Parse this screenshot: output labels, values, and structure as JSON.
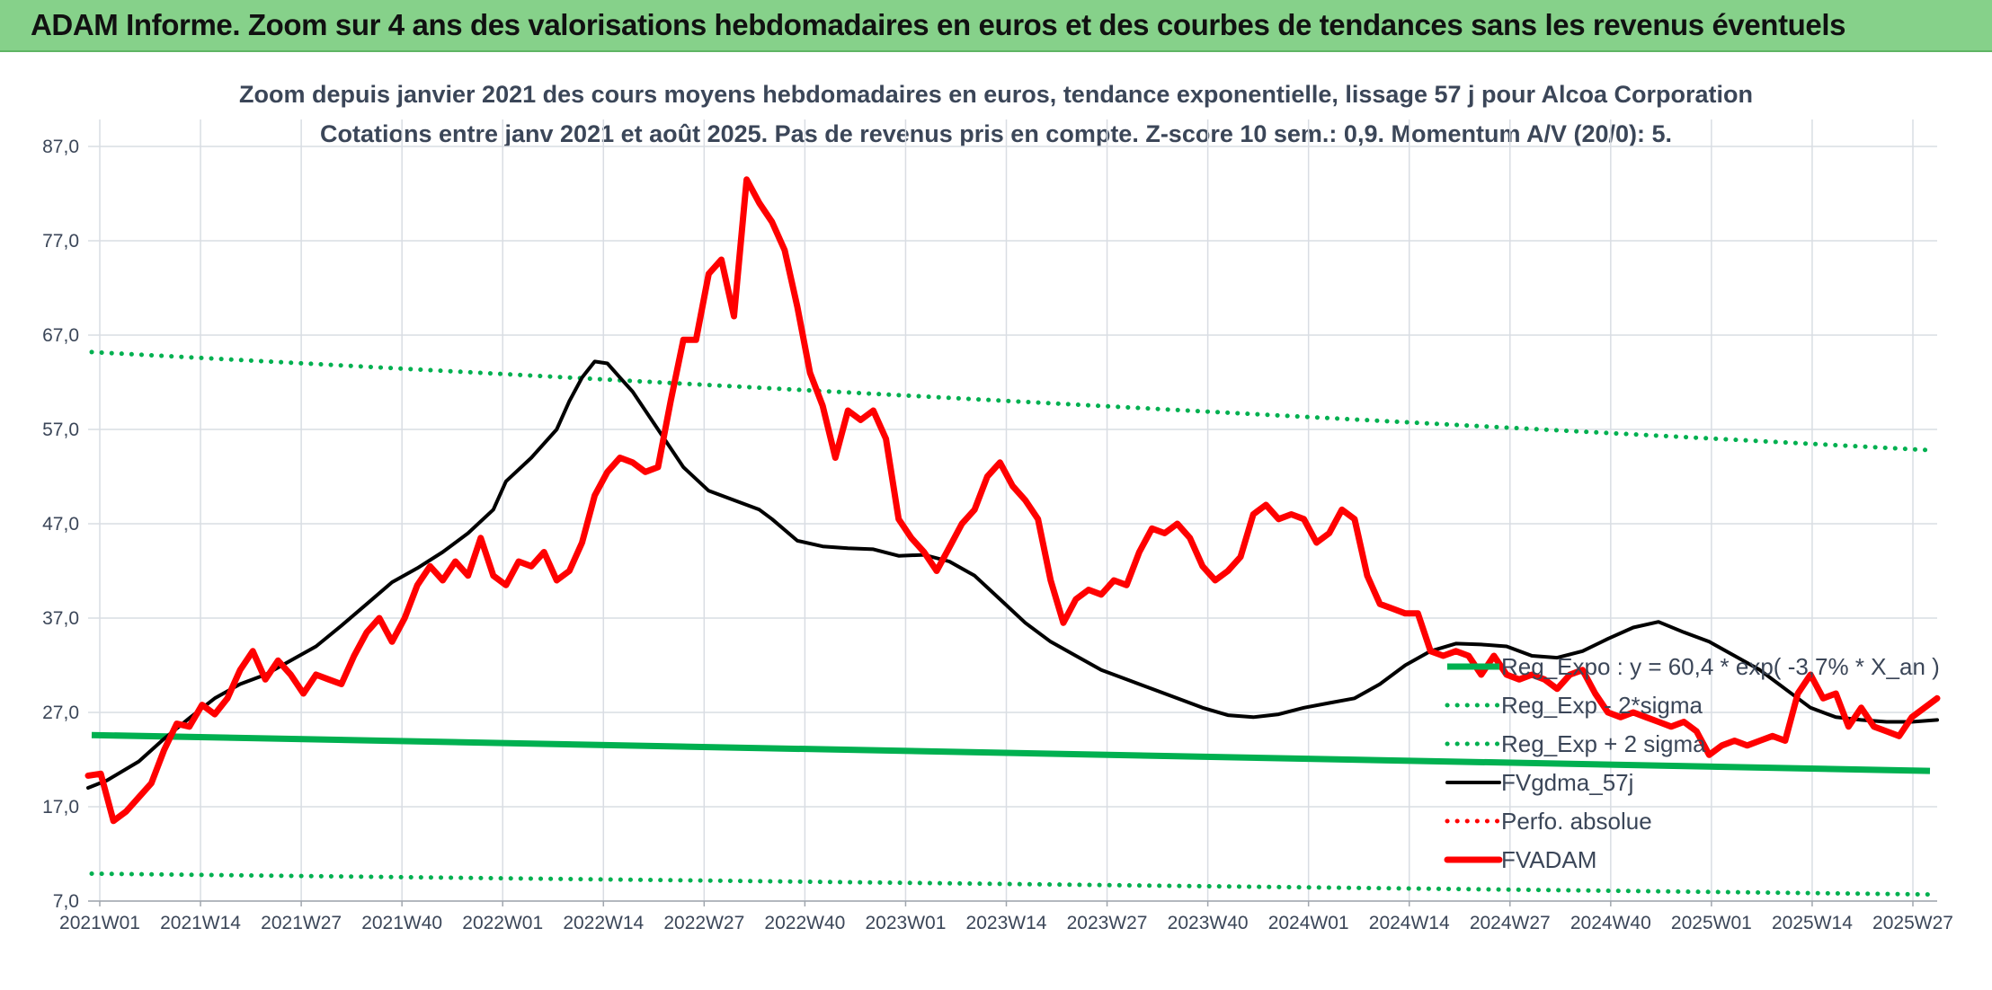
{
  "banner": {
    "title": "ADAM Informe. Zoom sur 4 ans des valorisations hebdomadaires en euros et des courbes de tendances sans les revenus éventuels"
  },
  "chart_data": {
    "type": "line",
    "title": "Zoom depuis janvier 2021 des cours moyens hebdomadaires en euros, tendance exponentielle, lissage 57 j pour Alcoa Corporation",
    "subtitle": "Cotations entre janv 2021 et août 2025. Pas de revenus pris en compte. Z-score 10 sem.: 0,9. Momentum A/V (20/0): 5.",
    "xlabel": "",
    "ylabel": "",
    "ylim": [
      7,
      87
    ],
    "yticks": [
      "7,0",
      "17,0",
      "27,0",
      "37,0",
      "47,0",
      "57,0",
      "67,0",
      "77,0",
      "87,0"
    ],
    "xticks": [
      "2021W01",
      "2021W14",
      "2021W27",
      "2021W40",
      "2022W01",
      "2022W14",
      "2022W27",
      "2022W40",
      "2023W01",
      "2023W14",
      "2023W27",
      "2023W40",
      "2024W01",
      "2024W14",
      "2024W27",
      "2024W40",
      "2025W01",
      "2025W14",
      "2025W27"
    ],
    "x_week_range": [
      0,
      243
    ],
    "grid": true,
    "legend_position": "right",
    "series": [
      {
        "name": "Reg_Expo : y = 60,4 * exp( -3,7% *  X_an )",
        "color": "#00b050",
        "style": "solid",
        "points": [
          [
            0,
            24.6
          ],
          [
            243,
            20.8
          ]
        ]
      },
      {
        "name": "Reg_Exp - 2*sigma",
        "color": "#00b050",
        "style": "dotted",
        "points": [
          [
            0,
            9.9
          ],
          [
            243,
            7.7
          ]
        ]
      },
      {
        "name": "Reg_Exp + 2 sigma",
        "color": "#00b050",
        "style": "dotted",
        "points": [
          [
            0,
            65.2
          ],
          [
            243,
            54.8
          ]
        ]
      },
      {
        "name": "FVgdma_57j",
        "color": "#000000",
        "style": "solid",
        "points": [
          [
            0,
            19.0
          ],
          [
            3,
            19.8
          ],
          [
            8,
            21.8
          ],
          [
            12,
            24.2
          ],
          [
            16,
            26.4
          ],
          [
            20,
            28.5
          ],
          [
            24,
            30.0
          ],
          [
            28,
            31.0
          ],
          [
            32,
            32.5
          ],
          [
            36,
            34.0
          ],
          [
            40,
            36.2
          ],
          [
            44,
            38.5
          ],
          [
            48,
            40.8
          ],
          [
            52,
            42.3
          ],
          [
            56,
            44.0
          ],
          [
            60,
            46.0
          ],
          [
            64,
            48.5
          ],
          [
            66,
            51.5
          ],
          [
            70,
            54.0
          ],
          [
            74,
            57.0
          ],
          [
            76,
            60.0
          ],
          [
            78,
            62.5
          ],
          [
            80,
            64.2
          ],
          [
            82,
            64.0
          ],
          [
            84,
            62.5
          ],
          [
            86,
            61.0
          ],
          [
            88,
            59.0
          ],
          [
            90,
            57.0
          ],
          [
            94,
            53.0
          ],
          [
            98,
            50.5
          ],
          [
            102,
            49.5
          ],
          [
            106,
            48.5
          ],
          [
            108,
            47.5
          ],
          [
            112,
            45.2
          ],
          [
            116,
            44.6
          ],
          [
            120,
            44.4
          ],
          [
            124,
            44.3
          ],
          [
            128,
            43.6
          ],
          [
            132,
            43.7
          ],
          [
            136,
            43.0
          ],
          [
            140,
            41.5
          ],
          [
            144,
            39.0
          ],
          [
            148,
            36.5
          ],
          [
            152,
            34.5
          ],
          [
            156,
            33.0
          ],
          [
            160,
            31.5
          ],
          [
            164,
            30.5
          ],
          [
            168,
            29.5
          ],
          [
            172,
            28.5
          ],
          [
            176,
            27.5
          ],
          [
            180,
            26.7
          ],
          [
            184,
            26.5
          ],
          [
            188,
            26.8
          ],
          [
            192,
            27.5
          ],
          [
            196,
            28.0
          ],
          [
            200,
            28.5
          ],
          [
            204,
            30.0
          ],
          [
            208,
            32.0
          ],
          [
            212,
            33.5
          ],
          [
            216,
            34.3
          ],
          [
            220,
            34.2
          ],
          [
            224,
            34.0
          ],
          [
            228,
            33.0
          ],
          [
            232,
            32.8
          ],
          [
            236,
            33.5
          ],
          [
            240,
            34.8
          ],
          [
            244,
            36.0
          ],
          [
            248,
            36.6
          ],
          [
            252,
            35.5
          ],
          [
            256,
            34.5
          ],
          [
            260,
            33.0
          ],
          [
            264,
            31.5
          ],
          [
            268,
            29.5
          ],
          [
            272,
            27.5
          ],
          [
            276,
            26.5
          ],
          [
            280,
            26.2
          ],
          [
            284,
            26.0
          ],
          [
            288,
            26.0
          ],
          [
            292,
            26.2
          ]
        ]
      },
      {
        "name": "Perfo. absolue",
        "color": "#ff0000",
        "style": "dotted",
        "points": []
      },
      {
        "name": "FVADAM",
        "color": "#ff0000",
        "style": "solid",
        "points": [
          [
            0,
            20.3
          ],
          [
            2,
            20.5
          ],
          [
            4,
            15.5
          ],
          [
            6,
            16.5
          ],
          [
            8,
            18.0
          ],
          [
            10,
            19.5
          ],
          [
            12,
            23.0
          ],
          [
            14,
            25.8
          ],
          [
            16,
            25.5
          ],
          [
            18,
            27.8
          ],
          [
            20,
            26.8
          ],
          [
            22,
            28.5
          ],
          [
            24,
            31.5
          ],
          [
            26,
            33.5
          ],
          [
            28,
            30.5
          ],
          [
            30,
            32.5
          ],
          [
            32,
            31.0
          ],
          [
            34,
            29.0
          ],
          [
            36,
            31.0
          ],
          [
            38,
            30.5
          ],
          [
            40,
            30.0
          ],
          [
            42,
            33.0
          ],
          [
            44,
            35.5
          ],
          [
            46,
            37.0
          ],
          [
            48,
            34.5
          ],
          [
            50,
            37.0
          ],
          [
            52,
            40.5
          ],
          [
            54,
            42.5
          ],
          [
            56,
            41.0
          ],
          [
            58,
            43.0
          ],
          [
            60,
            41.5
          ],
          [
            62,
            45.5
          ],
          [
            64,
            41.5
          ],
          [
            66,
            40.5
          ],
          [
            68,
            43.0
          ],
          [
            70,
            42.5
          ],
          [
            72,
            44.0
          ],
          [
            74,
            41.0
          ],
          [
            76,
            42.0
          ],
          [
            78,
            45.0
          ],
          [
            80,
            50.0
          ],
          [
            82,
            52.5
          ],
          [
            84,
            54.0
          ],
          [
            86,
            53.5
          ],
          [
            88,
            52.5
          ],
          [
            90,
            53.0
          ],
          [
            92,
            60.0
          ],
          [
            94,
            66.5
          ],
          [
            96,
            66.5
          ],
          [
            98,
            73.5
          ],
          [
            100,
            75.0
          ],
          [
            102,
            69.0
          ],
          [
            104,
            83.5
          ],
          [
            106,
            81.0
          ],
          [
            108,
            79.0
          ],
          [
            110,
            76.0
          ],
          [
            112,
            70.0
          ],
          [
            114,
            63.0
          ],
          [
            116,
            59.5
          ],
          [
            118,
            54.0
          ],
          [
            120,
            59.0
          ],
          [
            122,
            58.0
          ],
          [
            124,
            59.0
          ],
          [
            126,
            56.0
          ],
          [
            128,
            47.5
          ],
          [
            130,
            45.5
          ],
          [
            132,
            44.0
          ],
          [
            134,
            42.0
          ],
          [
            136,
            44.5
          ],
          [
            138,
            47.0
          ],
          [
            140,
            48.5
          ],
          [
            142,
            52.0
          ],
          [
            144,
            53.5
          ],
          [
            146,
            51.0
          ],
          [
            148,
            49.5
          ],
          [
            150,
            47.5
          ],
          [
            152,
            41.0
          ],
          [
            154,
            36.5
          ],
          [
            156,
            39.0
          ],
          [
            158,
            40.0
          ],
          [
            160,
            39.5
          ],
          [
            162,
            41.0
          ],
          [
            164,
            40.5
          ],
          [
            166,
            44.0
          ],
          [
            168,
            46.5
          ],
          [
            170,
            46.0
          ],
          [
            172,
            47.0
          ],
          [
            174,
            45.5
          ],
          [
            176,
            42.5
          ],
          [
            178,
            41.0
          ],
          [
            180,
            42.0
          ],
          [
            182,
            43.5
          ],
          [
            184,
            48.0
          ],
          [
            186,
            49.0
          ],
          [
            188,
            47.5
          ],
          [
            190,
            48.0
          ],
          [
            192,
            47.5
          ],
          [
            194,
            45.0
          ],
          [
            196,
            46.0
          ],
          [
            198,
            48.5
          ],
          [
            200,
            47.5
          ],
          [
            202,
            41.5
          ],
          [
            204,
            38.5
          ],
          [
            206,
            38.0
          ],
          [
            208,
            37.5
          ],
          [
            210,
            37.5
          ],
          [
            212,
            33.5
          ],
          [
            214,
            33.0
          ],
          [
            216,
            33.5
          ],
          [
            218,
            33.0
          ],
          [
            220,
            31.0
          ],
          [
            222,
            33.0
          ],
          [
            224,
            31.0
          ],
          [
            226,
            30.5
          ],
          [
            228,
            31.0
          ],
          [
            230,
            30.5
          ],
          [
            232,
            29.5
          ],
          [
            234,
            31.0
          ],
          [
            236,
            31.5
          ],
          [
            238,
            29.0
          ],
          [
            240,
            27.0
          ],
          [
            242,
            26.5
          ],
          [
            244,
            27.0
          ],
          [
            246,
            26.5
          ],
          [
            248,
            26.0
          ],
          [
            250,
            25.5
          ],
          [
            252,
            26.0
          ],
          [
            254,
            25.0
          ],
          [
            256,
            22.5
          ],
          [
            258,
            23.5
          ],
          [
            260,
            24.0
          ],
          [
            262,
            23.5
          ],
          [
            264,
            24.0
          ],
          [
            266,
            24.5
          ],
          [
            268,
            24.0
          ],
          [
            270,
            29.0
          ],
          [
            272,
            31.0
          ],
          [
            274,
            28.5
          ],
          [
            276,
            29.0
          ],
          [
            278,
            25.5
          ],
          [
            280,
            27.5
          ],
          [
            282,
            25.5
          ],
          [
            284,
            25.0
          ],
          [
            286,
            24.5
          ],
          [
            288,
            26.5
          ],
          [
            290,
            27.5
          ],
          [
            292,
            28.5
          ]
        ]
      }
    ]
  }
}
